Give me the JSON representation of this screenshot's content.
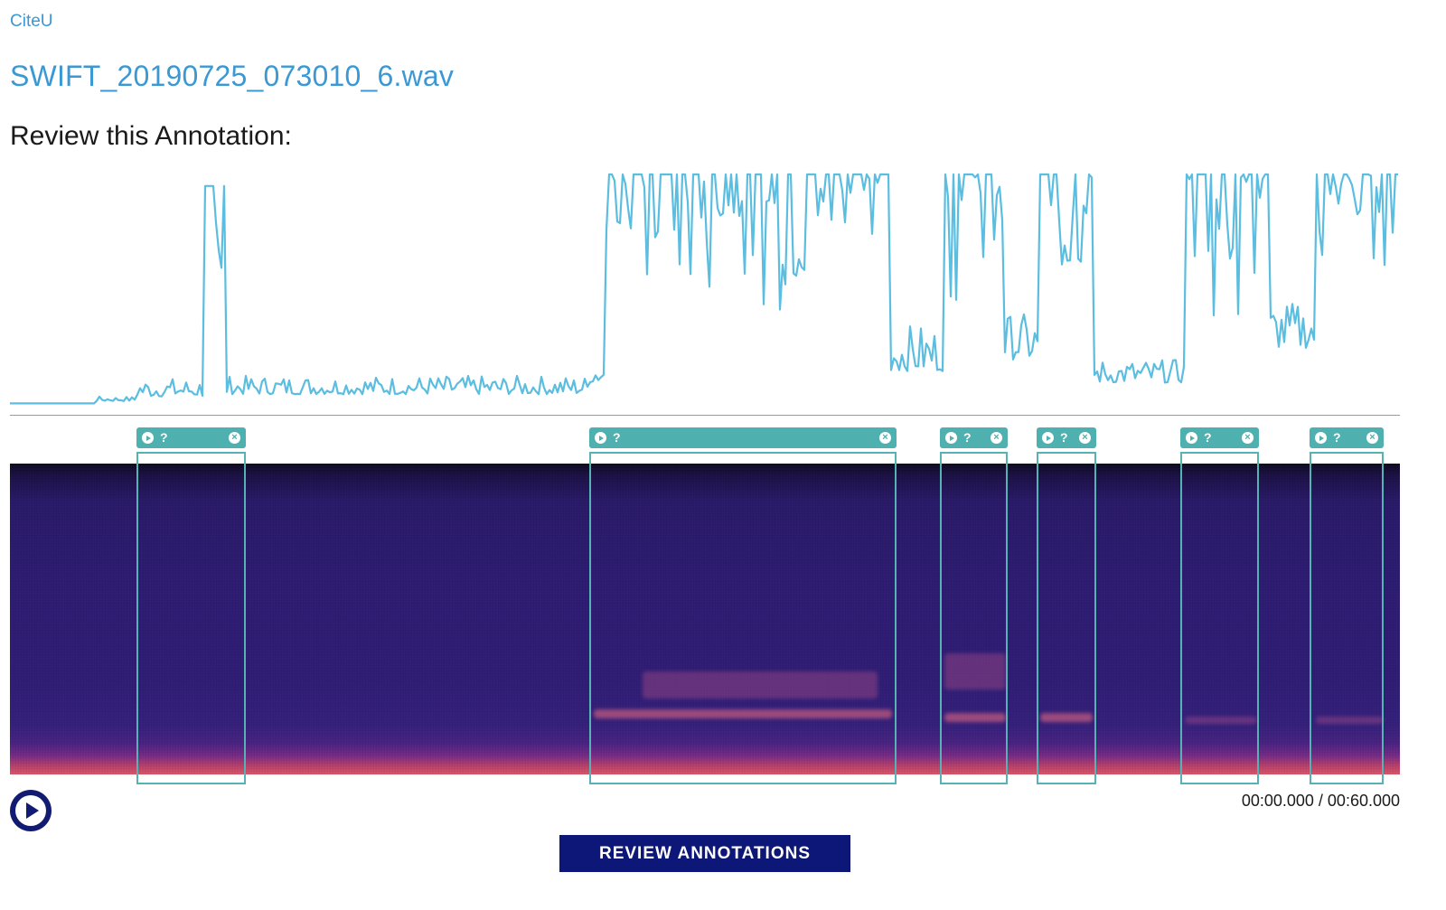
{
  "brand": "CiteU",
  "filename": "SWIFT_20190725_073010_6.wav",
  "heading": "Review this Annotation:",
  "annotations": [
    {
      "label": "?",
      "close": "×"
    },
    {
      "label": "?",
      "close": "×"
    },
    {
      "label": "?",
      "close": "×"
    },
    {
      "label": "?",
      "close": "×"
    },
    {
      "label": "?",
      "close": "×"
    },
    {
      "label": "?",
      "close": "×"
    }
  ],
  "player": {
    "current_time": "00:00.000",
    "separator": " / ",
    "duration": "00:60.000"
  },
  "review_button": "REVIEW ANNOTATIONS",
  "colors": {
    "link": "#3a98d4",
    "waveform": "#5bbde0",
    "annotation": "#4fb0b0",
    "button": "#0c1777"
  }
}
